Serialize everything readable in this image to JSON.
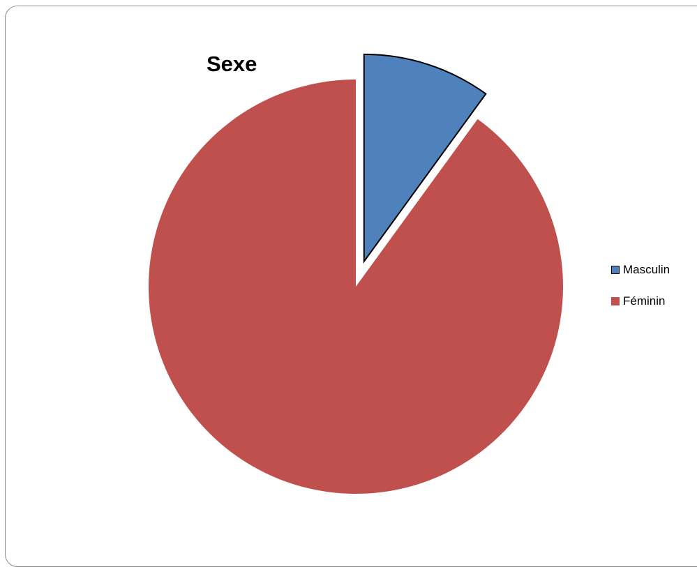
{
  "chart_data": {
    "type": "pie",
    "title": "Sexe",
    "categories": [
      "Masculin",
      "Féminin"
    ],
    "values": [
      10,
      90
    ],
    "colors": [
      "#4f81bd",
      "#c0504d"
    ],
    "exploded": [
      true,
      false
    ],
    "legend_position": "right"
  }
}
